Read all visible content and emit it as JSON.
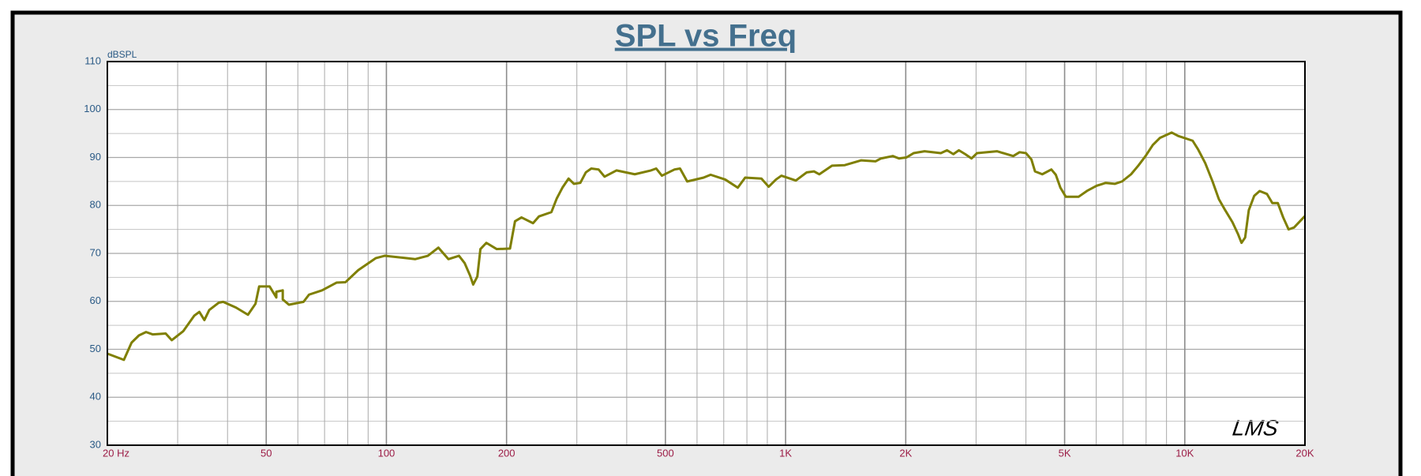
{
  "chart_data": {
    "type": "line",
    "title": "SPL vs Freq",
    "ylabel": "dBSPL",
    "logo": "LMS",
    "xscale": "log",
    "xlim": [
      20,
      20000
    ],
    "xticks": [
      {
        "value": 20,
        "label": "20  Hz"
      },
      50,
      100,
      200,
      500,
      {
        "value": 1000,
        "label": "1K"
      },
      {
        "value": 2000,
        "label": "2K"
      },
      {
        "value": 5000,
        "label": "5K"
      },
      {
        "value": 10000,
        "label": "10K"
      },
      {
        "value": 20000,
        "label": "20K"
      }
    ],
    "xminorticks": [
      30,
      40,
      60,
      70,
      80,
      90,
      300,
      400,
      600,
      700,
      800,
      900,
      3000,
      4000,
      6000,
      7000,
      8000,
      9000
    ],
    "ylim": [
      30,
      110
    ],
    "yticks": [
      30,
      40,
      50,
      60,
      70,
      80,
      90,
      100,
      110
    ],
    "yminorticks": [
      35,
      45,
      55,
      65,
      75,
      85,
      95,
      105
    ],
    "grid": true,
    "x": [
      20,
      22,
      23,
      24,
      25,
      26,
      28,
      29,
      31,
      33,
      34,
      35,
      36,
      38,
      39,
      42,
      45,
      47,
      48,
      51,
      53,
      53,
      55,
      55,
      57,
      62,
      64,
      69,
      75,
      79,
      85,
      94,
      99,
      110,
      118,
      127,
      135,
      143,
      152,
      157,
      162,
      165,
      169,
      172,
      178,
      189,
      204,
      210,
      218,
      233,
      241,
      259,
      267,
      276,
      286,
      295,
      306,
      316,
      326,
      340,
      352,
      377,
      419,
      460,
      474,
      490,
      527,
      544,
      567,
      623,
      649,
      706,
      759,
      792,
      870,
      907,
      946,
      976,
      1061,
      1130,
      1178,
      1215,
      1307,
      1407,
      1545,
      1681,
      1734,
      1856,
      1924,
      2007,
      2092,
      2229,
      2448,
      2538,
      2632,
      2717,
      2818,
      2923,
      3016,
      3384,
      3718,
      3856,
      4001,
      4128,
      4215,
      4396,
      4632,
      4752,
      4880,
      5036,
      5418,
      5708,
      6014,
      6337,
      6677,
      6962,
      7336,
      7649,
      7975,
      8315,
      8670,
      9276,
      9622,
      10463,
      10796,
      11256,
      11737,
      12174,
      12627,
      13166,
      13583,
      13870,
      14164,
      14465,
      14924,
      15400,
      16060,
      16570,
      17100,
      17640,
      18200,
      18780,
      20000
    ],
    "series": [
      {
        "name": "SPL",
        "color": "#7f7f00",
        "values": [
          49.1,
          47.8,
          51.4,
          52.9,
          53.6,
          53.1,
          53.3,
          51.9,
          53.8,
          57,
          57.8,
          56.1,
          58.2,
          59.7,
          59.9,
          58.7,
          57.2,
          59.5,
          63.1,
          63.1,
          60.8,
          62,
          62.3,
          60.4,
          59.3,
          59.9,
          61.4,
          62.3,
          63.9,
          64,
          66.5,
          69,
          69.5,
          69.1,
          68.8,
          69.5,
          71.2,
          68.8,
          69.5,
          68,
          65.4,
          63.5,
          65.2,
          70.9,
          72.2,
          70.9,
          71,
          76.7,
          77.5,
          76.3,
          77.7,
          78.6,
          81.4,
          83.7,
          85.6,
          84.5,
          84.7,
          86.9,
          87.7,
          87.5,
          86,
          87.3,
          86.5,
          87.3,
          87.7,
          86.2,
          87.5,
          87.7,
          85,
          85.8,
          86.4,
          85.4,
          83.7,
          85.8,
          85.6,
          83.9,
          85.4,
          86.2,
          85.2,
          86.9,
          87.1,
          86.5,
          88.3,
          88.4,
          89.4,
          89.2,
          89.8,
          90.3,
          89.8,
          90,
          90.9,
          91.3,
          90.9,
          91.5,
          90.7,
          91.5,
          90.7,
          89.8,
          90.9,
          91.3,
          90.3,
          91.1,
          90.9,
          89.6,
          87.1,
          86.5,
          87.5,
          86.4,
          83.7,
          81.8,
          81.8,
          83.1,
          84.1,
          84.7,
          84.5,
          85,
          86.5,
          88.3,
          90.3,
          92.6,
          94.1,
          95.2,
          94.5,
          93.5,
          91.7,
          88.8,
          85,
          81.3,
          79,
          76.5,
          74.1,
          72.2,
          73.3,
          79,
          82,
          83,
          82.4,
          80.5,
          80.5,
          77.5,
          75,
          75.4,
          77.8
        ]
      }
    ]
  }
}
